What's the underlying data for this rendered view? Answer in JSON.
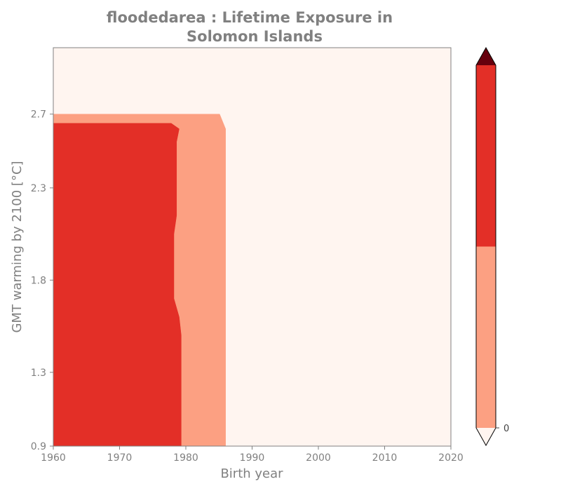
{
  "chart_data": {
    "type": "heatmap",
    "title_lines": [
      "floodedarea : Lifetime Exposure in",
      "Solomon Islands"
    ],
    "xlabel": "Birth year",
    "ylabel": "GMT warming by 2100 [°C]",
    "xlim": [
      1960,
      2020
    ],
    "ylim": [
      0.9,
      3.06
    ],
    "x_ticks": [
      1960,
      1970,
      1980,
      1990,
      2000,
      2010,
      2020
    ],
    "y_ticks": [
      0.9,
      1.3,
      1.8,
      2.3,
      2.7
    ],
    "y_tick_labels": [
      "0.9",
      "1.3",
      "1.8",
      "2.3",
      "2.7"
    ],
    "background_color": "#fff5f0",
    "regions": [
      {
        "color": "#fca082",
        "points": [
          [
            1960,
            0.9
          ],
          [
            1960,
            2.7
          ],
          [
            1985.1,
            2.7
          ],
          [
            1986,
            2.62
          ],
          [
            1986,
            0.9
          ]
        ]
      },
      {
        "color": "#e32f27",
        "points": [
          [
            1960,
            0.9
          ],
          [
            1960,
            2.65
          ],
          [
            1977.8,
            2.65
          ],
          [
            1979,
            2.62
          ],
          [
            1978.6,
            2.55
          ],
          [
            1978.6,
            2.15
          ],
          [
            1978.2,
            2.05
          ],
          [
            1978.2,
            1.7
          ],
          [
            1979,
            1.6
          ],
          [
            1979.3,
            1.5
          ],
          [
            1979.3,
            0.9
          ]
        ]
      }
    ],
    "colorbar": {
      "bands": [
        {
          "color": "#fca082",
          "from": 0.0,
          "to": 0.5
        },
        {
          "color": "#e32f27",
          "from": 0.5,
          "to": 1.0
        }
      ],
      "extend_low_color": "#fff5f0",
      "extend_high_color": "#67000d",
      "ticks": [
        {
          "value": 0.0,
          "label": "0"
        }
      ]
    }
  }
}
